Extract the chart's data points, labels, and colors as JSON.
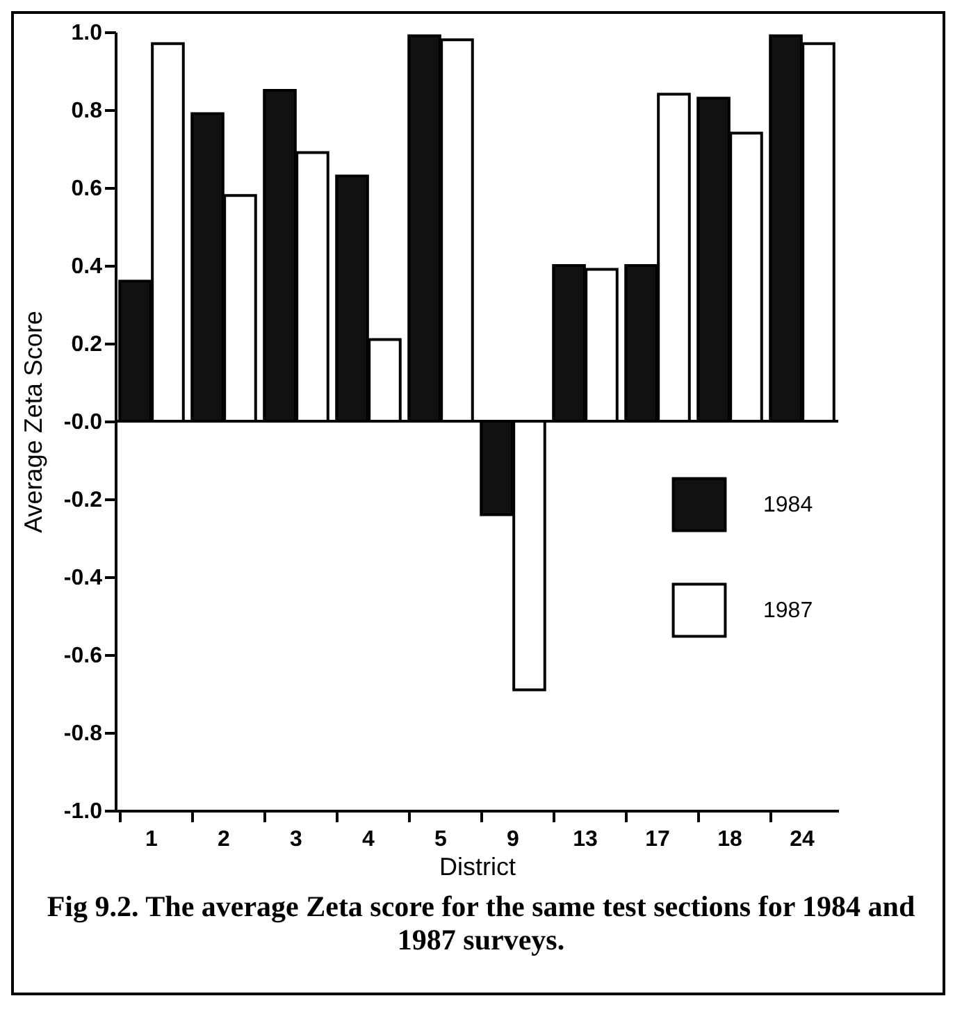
{
  "chart_data": {
    "type": "bar",
    "xlabel": "District",
    "ylabel": "Average Zeta Score",
    "categories": [
      "1",
      "2",
      "3",
      "4",
      "5",
      "9",
      "13",
      "17",
      "18",
      "24"
    ],
    "series": [
      {
        "name": "1984",
        "color": "#111111",
        "values": [
          0.36,
          0.79,
          0.85,
          0.63,
          0.99,
          -0.24,
          0.4,
          0.4,
          0.83,
          0.99
        ]
      },
      {
        "name": "1987",
        "color": "#ffffff",
        "values": [
          0.97,
          0.58,
          0.69,
          0.21,
          0.98,
          -0.69,
          0.39,
          0.84,
          0.74,
          0.97
        ]
      }
    ],
    "ylim": [
      -1,
      1
    ],
    "yticks": [
      {
        "value": -1,
        "label": "-1.0"
      },
      {
        "value": -0.8,
        "label": "-0.8"
      },
      {
        "value": -0.6,
        "label": "-0.6"
      },
      {
        "value": -0.4,
        "label": "-0.4"
      },
      {
        "value": -0.2,
        "label": "-0.2"
      },
      {
        "value": 0,
        "label": "-0.0"
      },
      {
        "value": 0.2,
        "label": "0.2"
      },
      {
        "value": 0.4,
        "label": "0.4"
      },
      {
        "value": 0.6,
        "label": "0.6"
      },
      {
        "value": 0.8,
        "label": "0.8"
      },
      {
        "value": 1,
        "label": "1.0"
      }
    ],
    "ref_lines": [
      {
        "axis": "y",
        "value": 0
      }
    ],
    "legend": "bottom right",
    "annotations": [
      "Fig 9.2.  The average Zeta score for the same test sections for 1984 and 1987 surveys."
    ]
  }
}
